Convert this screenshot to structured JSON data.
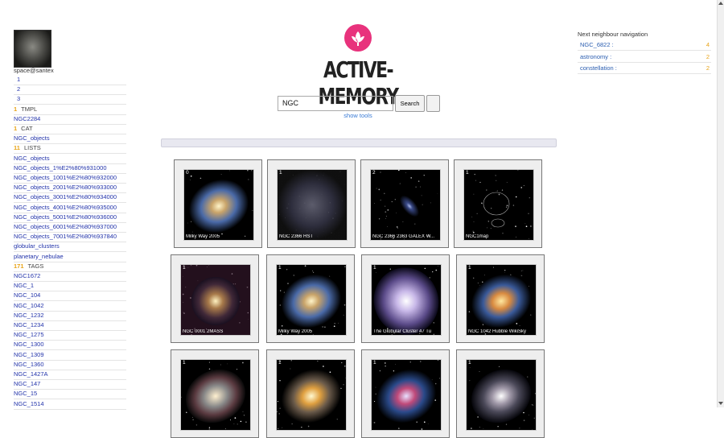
{
  "user": {
    "name": "space@santex"
  },
  "sidebar": {
    "pages": [
      "1",
      "2",
      "3"
    ],
    "sections": [
      {
        "count": "1",
        "label": "TMPL",
        "items": [
          "NGC2284"
        ]
      },
      {
        "count": "1",
        "label": "CAT",
        "items": [
          "NGC_objects"
        ]
      },
      {
        "count": "11",
        "label": "LISTS",
        "items": [
          "NGC_objects",
          "NGC_objects_1%E2%80%931000",
          "NGC_objects_1001%E2%80%932000",
          "NGC_objects_2001%E2%80%933000",
          "NGC_objects_3001%E2%80%934000",
          "NGC_objects_4001%E2%80%935000",
          "NGC_objects_5001%E2%80%936000",
          "NGC_objects_6001%E2%80%937000",
          "NGC_objects_7001%E2%80%937840",
          "globular_clusters",
          "planetary_nebulae"
        ]
      },
      {
        "count": "171",
        "label": "TAGS",
        "items": [
          "NGC1672",
          "NGC_1",
          "NGC_104",
          "NGC_1042",
          "NGC_1232",
          "NGC_1234",
          "NGC_1275",
          "NGC_1300",
          "NGC_1309",
          "NGC_1360",
          "NGC_1427A",
          "NGC_147",
          "NGC_15",
          "NGC_1514"
        ]
      }
    ]
  },
  "header": {
    "title": "ACTIVE-MEMORY"
  },
  "search": {
    "query": "NGC",
    "button": "Search",
    "tools_link": "show tools"
  },
  "neighbours": {
    "title": "Next neighbour navigation",
    "items": [
      {
        "label": "NGC_6822 :",
        "count": "4"
      },
      {
        "label": "astronomy :",
        "count": "2"
      },
      {
        "label": "constellation :",
        "count": "2"
      }
    ]
  },
  "gallery": {
    "items": [
      {
        "count": "0",
        "caption": "Milky Way 2005"
      },
      {
        "count": "1",
        "caption": "NGC 2366 HST"
      },
      {
        "count": "2",
        "caption": "NGC 2366 2363 GALEX W..."
      },
      {
        "count": "1",
        "caption": "NGC1map"
      },
      {
        "count": "1",
        "caption": "NGC 0001 2MASS"
      },
      {
        "count": "1",
        "caption": "Milky Way 2005"
      },
      {
        "count": "1",
        "caption": "The Globular Cluster 47 Tu"
      },
      {
        "count": "1",
        "caption": "NGC 1042 Hubble WikiSky"
      },
      {
        "count": "1"
      },
      {
        "count": "1"
      },
      {
        "count": "1"
      },
      {
        "count": "1"
      }
    ]
  }
}
